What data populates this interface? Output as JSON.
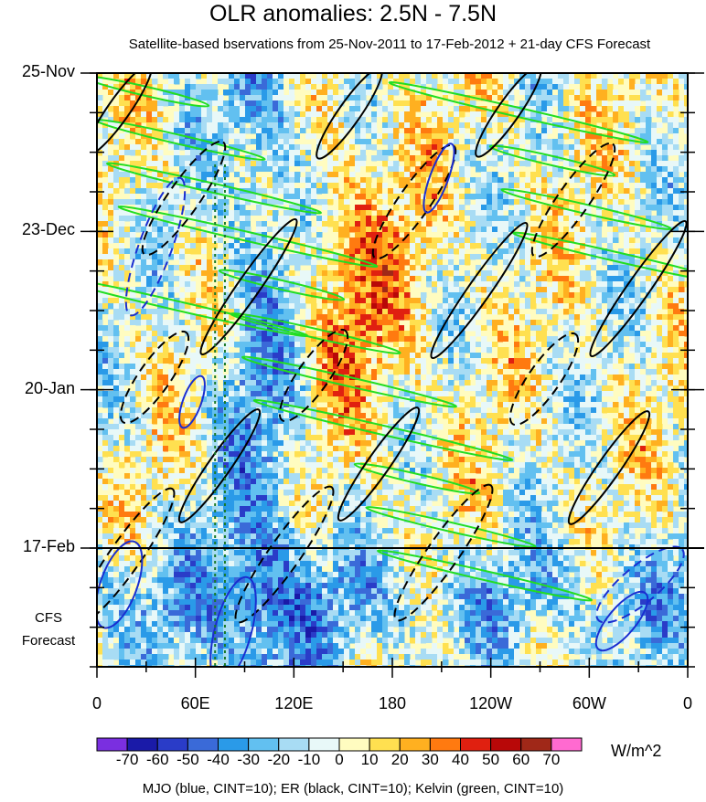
{
  "chart_data": {
    "type": "heatmap",
    "title": "OLR anomalies: 2.5N - 7.5N",
    "subtitle": "Satellite-based bservations from 25-Nov-2011 to 17-Feb-2012 + 21-day CFS Forecast",
    "x_ticks": [
      {
        "lon": 0,
        "label": "0"
      },
      {
        "lon": 60,
        "label": "60E"
      },
      {
        "lon": 120,
        "label": "120E"
      },
      {
        "lon": 180,
        "label": "180"
      },
      {
        "lon": 240,
        "label": "120W"
      },
      {
        "lon": 300,
        "label": "60W"
      },
      {
        "lon": 360,
        "label": "0"
      }
    ],
    "xlim": [
      0,
      360
    ],
    "y_ticks": [
      {
        "date": "2011-11-25",
        "label": "25-Nov"
      },
      {
        "date": "2011-12-23",
        "label": "23-Dec"
      },
      {
        "date": "2012-01-20",
        "label": "20-Jan"
      },
      {
        "date": "2012-02-17",
        "label": "17-Feb"
      }
    ],
    "ylim": [
      "2011-11-25",
      "2012-03-09"
    ],
    "observation_end": "2012-02-17",
    "forecast_label_line1": "CFS",
    "forecast_label_line2": "Forecast",
    "reference_lons": [
      72,
      78
    ],
    "colorbar": {
      "labels": [
        "-70",
        "-60",
        "-50",
        "-40",
        "-30",
        "-20",
        "-10",
        "0",
        "10",
        "20",
        "30",
        "40",
        "50",
        "60",
        "70"
      ],
      "colors": [
        "#7a2fe0",
        "#1a1aa8",
        "#2a3cc8",
        "#3a6ad8",
        "#2a9ae8",
        "#62c0f0",
        "#a8dcf4",
        "#e8f8f8",
        "#fffcc0",
        "#ffe050",
        "#ffb020",
        "#ff7a10",
        "#e02010",
        "#b80808",
        "#a02818",
        "#ff6ad0"
      ],
      "units": "W/m^2"
    },
    "caption": "MJO (blue, CINT=10); ER (black, CINT=10); Kelvin (green, CINT=10)",
    "overlays": {
      "mjo_color": "#1a2ed0",
      "er_color": "#000000",
      "kelvin_color": "#22dd22"
    }
  }
}
